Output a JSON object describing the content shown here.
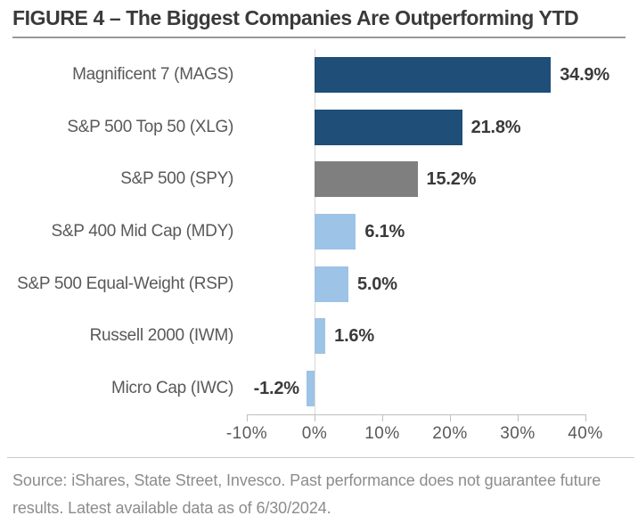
{
  "figure": {
    "title": "FIGURE 4 – The Biggest Companies Are Outperforming YTD",
    "source_note": "Source: iShares, State Street, Invesco. Past performance does not guarantee future results. Latest available data as of 6/30/2024."
  },
  "chart_data": {
    "type": "bar",
    "orientation": "horizontal",
    "title": "FIGURE 4 – The Biggest Companies Are Outperforming YTD",
    "categories": [
      "Magnificent 7 (MAGS)",
      "S&P 500 Top 50 (XLG)",
      "S&P 500 (SPY)",
      "S&P 400 Mid Cap (MDY)",
      "S&P 500 Equal-Weight (RSP)",
      "Russell 2000 (IWM)",
      "Micro Cap (IWC)"
    ],
    "values": [
      34.9,
      21.8,
      15.2,
      6.1,
      5.0,
      1.6,
      -1.2
    ],
    "value_labels": [
      "34.9%",
      "21.8%",
      "15.2%",
      "6.1%",
      "5.0%",
      "1.6%",
      "-1.2%"
    ],
    "bar_colors": [
      "#1F4E79",
      "#1F4E79",
      "#7F7F7F",
      "#9DC3E6",
      "#9DC3E6",
      "#9DC3E6",
      "#9DC3E6"
    ],
    "x_ticks": [
      -10,
      0,
      10,
      20,
      30,
      40
    ],
    "x_tick_labels": [
      "-10%",
      "0%",
      "10%",
      "20%",
      "30%",
      "40%"
    ],
    "xlim": [
      -10,
      40
    ],
    "grid": "vertical-line-at-zero-only",
    "legend": "none",
    "data_label_position": "outside-end"
  },
  "colors": {
    "dark_blue": "#1F4E79",
    "gray": "#7F7F7F",
    "light_blue": "#9DC3E6",
    "title_text": "#3A3A3A",
    "category_text": "#595959",
    "value_text": "#3A3A3A",
    "tick_text": "#595959",
    "axis_line": "#BFBFBF",
    "gridline": "#D9D9D9",
    "source_text": "#8C8C8C"
  }
}
